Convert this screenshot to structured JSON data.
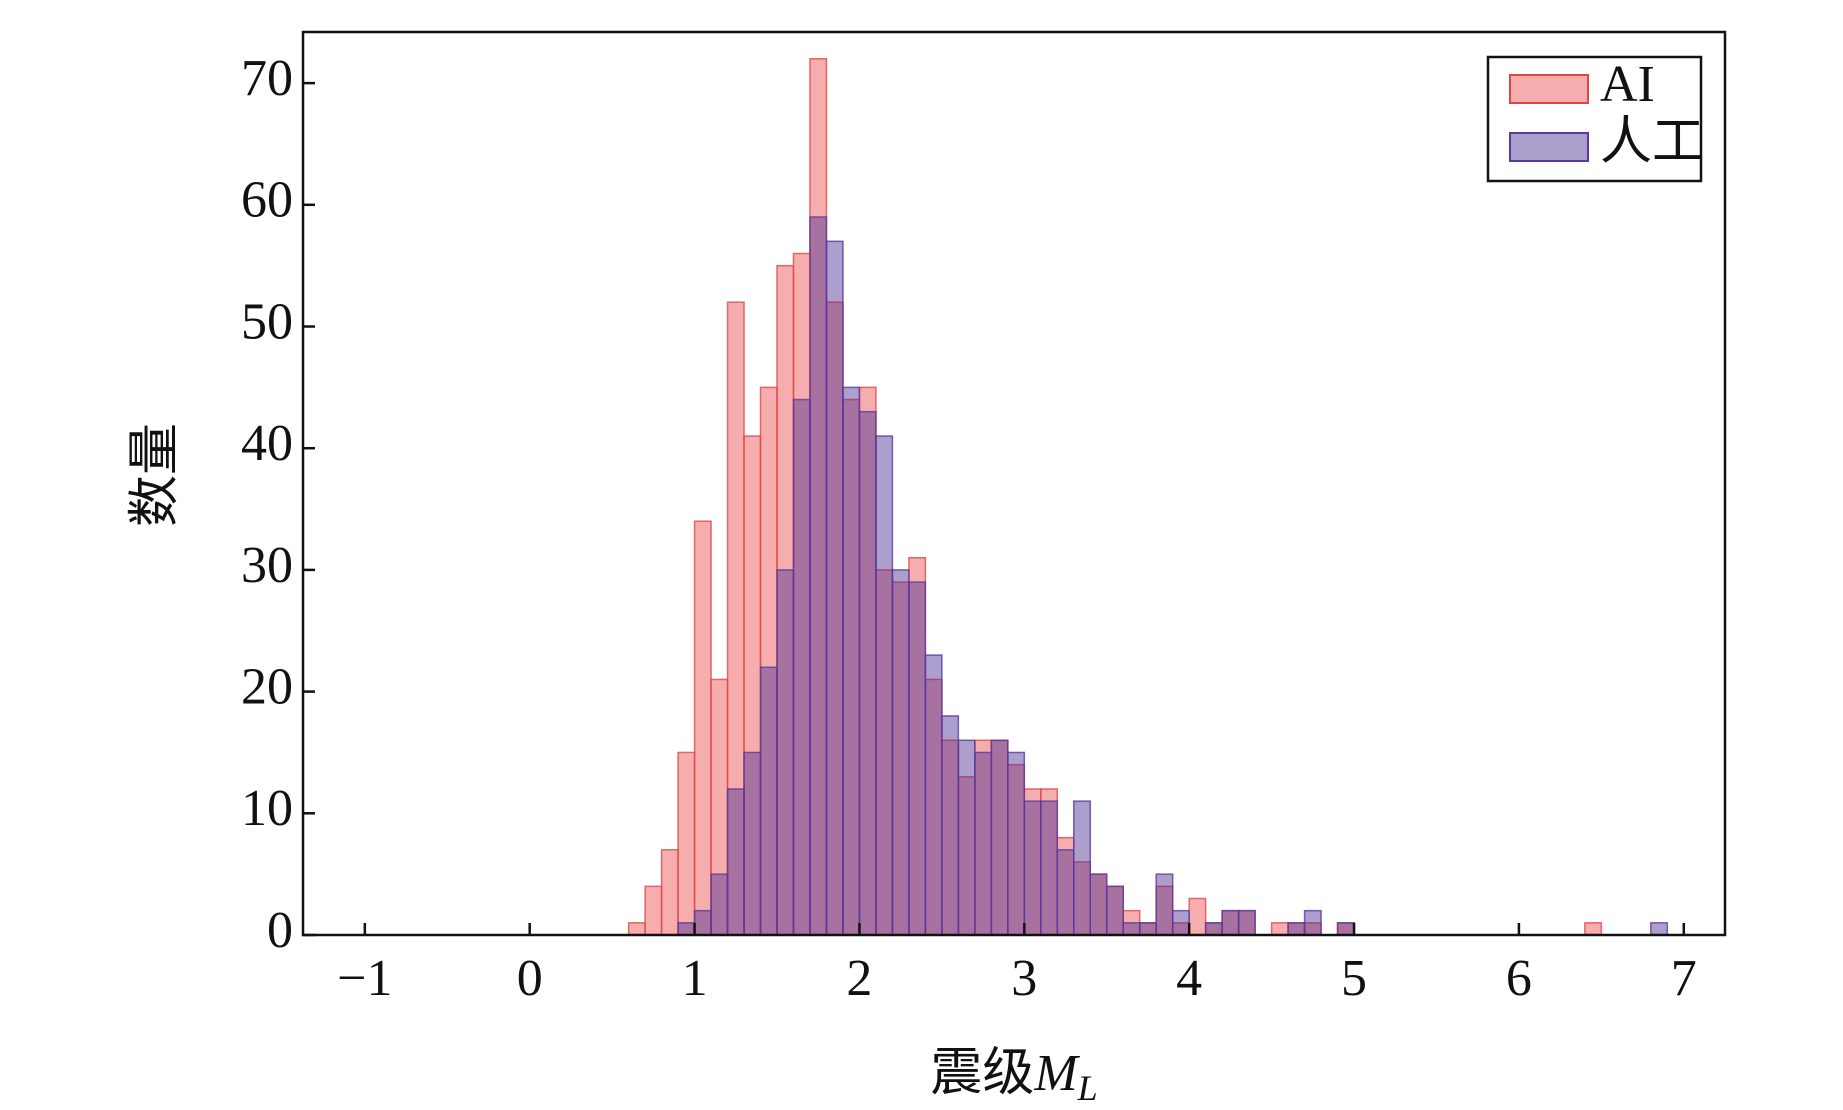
{
  "chart_data": {
    "type": "histogram",
    "xlabel": {
      "text": "震级",
      "symbol": "M",
      "subscript": "L"
    },
    "ylabel": "数量",
    "bins": [
      0.6,
      0.7,
      0.8,
      0.9,
      1.0,
      1.1,
      1.2,
      1.3,
      1.4,
      1.5,
      1.6,
      1.7,
      1.8,
      1.9,
      2.0,
      2.1,
      2.2,
      2.3,
      2.4,
      2.5,
      2.6,
      2.7,
      2.8,
      2.9,
      3.0,
      3.1,
      3.2,
      3.3,
      3.4,
      3.5,
      3.6,
      3.7,
      3.8,
      3.9,
      4.0,
      4.1,
      4.2,
      4.3,
      4.4,
      4.5,
      4.6,
      4.7,
      4.8,
      4.9,
      5.0,
      5.1,
      5.2,
      5.3,
      5.4,
      5.5,
      5.6,
      5.7,
      5.8,
      5.9,
      6.0,
      6.1,
      6.2,
      6.3,
      6.4,
      6.5,
      6.6,
      6.7,
      6.8,
      6.9
    ],
    "series": [
      {
        "name": "AI",
        "color": "#ef6a6a",
        "edge": "#e04848",
        "alpha": 0.55,
        "values": [
          1,
          4,
          7,
          15,
          34,
          21,
          52,
          41,
          45,
          55,
          56,
          72,
          52,
          44,
          45,
          30,
          29,
          31,
          21,
          16,
          13,
          16,
          16,
          14,
          12,
          12,
          8,
          6,
          5,
          4,
          2,
          1,
          4,
          1,
          3,
          1,
          2,
          2,
          0,
          1,
          1,
          1,
          0,
          1,
          0,
          0,
          0,
          0,
          0,
          0,
          0,
          0,
          0,
          0,
          0,
          0,
          0,
          0,
          1,
          0,
          0,
          0,
          0
        ]
      },
      {
        "name": "人工",
        "color": "#4a2a90",
        "edge": "#5a3aa0",
        "alpha": 0.45,
        "values": [
          0,
          0,
          0,
          1,
          2,
          5,
          12,
          15,
          22,
          30,
          44,
          59,
          57,
          45,
          43,
          41,
          30,
          29,
          23,
          18,
          16,
          15,
          16,
          15,
          11,
          11,
          7,
          11,
          5,
          4,
          1,
          1,
          5,
          2,
          0,
          1,
          2,
          2,
          0,
          0,
          1,
          2,
          0,
          1,
          0,
          0,
          0,
          0,
          0,
          0,
          0,
          0,
          0,
          0,
          0,
          0,
          0,
          0,
          0,
          0,
          0,
          0,
          1
        ]
      }
    ],
    "xlim": [
      -1.375,
      7.25
    ],
    "ylim": [
      0,
      74.2
    ],
    "xticks": [
      {
        "value": -1,
        "label": "−1"
      },
      0,
      1,
      2,
      3,
      4,
      5,
      6,
      7
    ],
    "yticks": [
      0,
      10,
      20,
      30,
      40,
      50,
      60,
      70
    ],
    "legend": "upper right"
  }
}
